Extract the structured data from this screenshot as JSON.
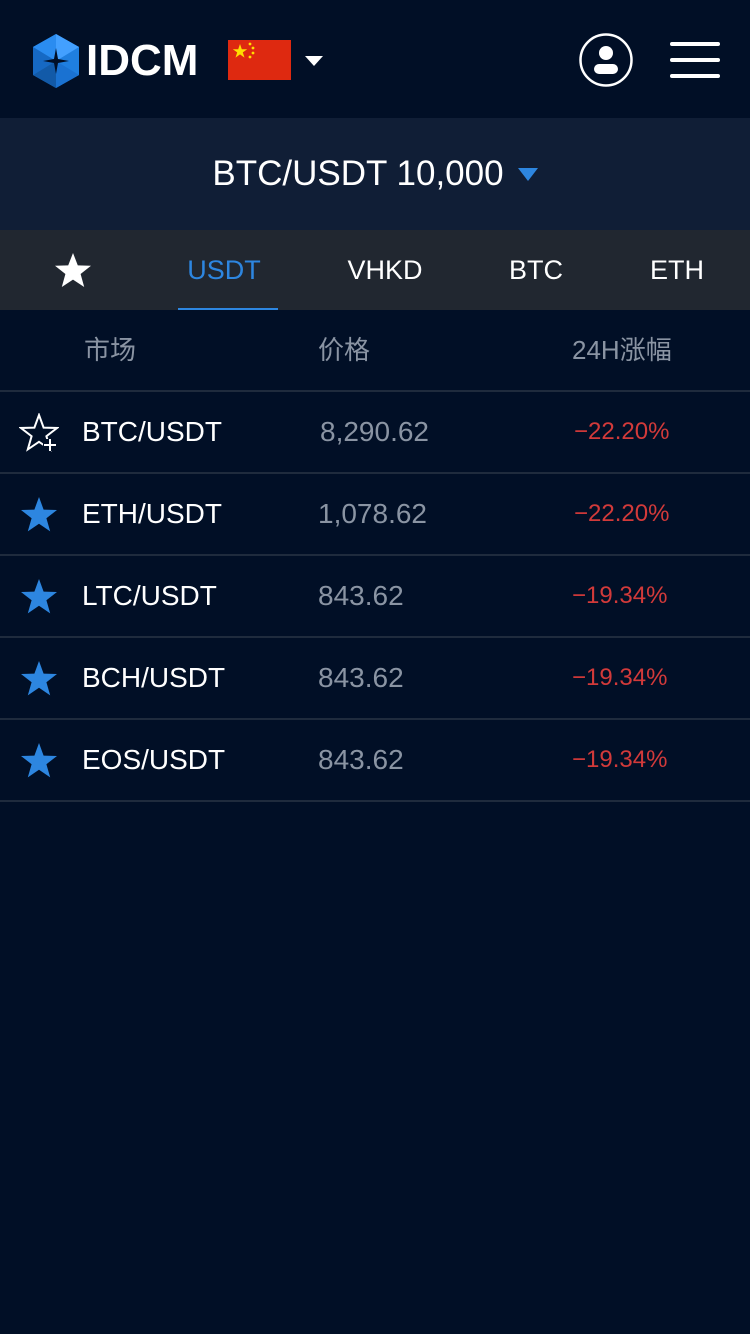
{
  "header": {
    "brand": "IDCM",
    "logo_icon": "idcm-hexagon-logo",
    "language_flag": "china-flag-icon",
    "user_icon": "user-icon",
    "menu_icon": "hamburger-menu-icon"
  },
  "pair_selector": {
    "label": "BTC/USDT 10,000",
    "caret_icon": "caret-down-icon"
  },
  "tabs": {
    "favorites_icon": "star-icon",
    "items": [
      {
        "label": "USDT",
        "active": true
      },
      {
        "label": "VHKD",
        "active": false
      },
      {
        "label": "BTC",
        "active": false
      },
      {
        "label": "ETH",
        "active": false
      }
    ]
  },
  "table": {
    "headers": {
      "market": "市场",
      "price": "价格",
      "change": "24H涨幅"
    },
    "rows": [
      {
        "pair": "BTC/USDT",
        "price": "8,290.62",
        "change": "−22.20%",
        "favorited": false
      },
      {
        "pair": "ETH/USDT",
        "price": "1,078.62",
        "change": "−22.20%",
        "favorited": true
      },
      {
        "pair": "LTC/USDT",
        "price": "843.62",
        "change": "−19.34%",
        "favorited": true
      },
      {
        "pair": "BCH/USDT",
        "price": "843.62",
        "change": "−19.34%",
        "favorited": true
      },
      {
        "pair": "EOS/USDT",
        "price": "843.62",
        "change": "−19.34%",
        "favorited": true
      }
    ]
  },
  "colors": {
    "background": "#010f26",
    "accent": "#2d86e0",
    "negative": "#d23a3a",
    "muted_text": "#8a94a3"
  }
}
